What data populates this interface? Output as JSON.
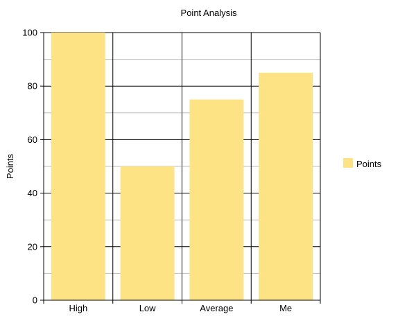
{
  "chart_data": {
    "type": "bar",
    "title": "Point Analysis",
    "xlabel": "",
    "ylabel": "Points",
    "categories": [
      "High",
      "Low",
      "Average",
      "Me"
    ],
    "series": [
      {
        "name": "Points",
        "values": [
          100,
          50,
          75,
          85
        ],
        "color": "#fde383"
      }
    ],
    "ylim": [
      0,
      100
    ],
    "yticks": [
      0,
      20,
      40,
      60,
      80,
      100
    ],
    "grid": true,
    "legend": "right"
  }
}
